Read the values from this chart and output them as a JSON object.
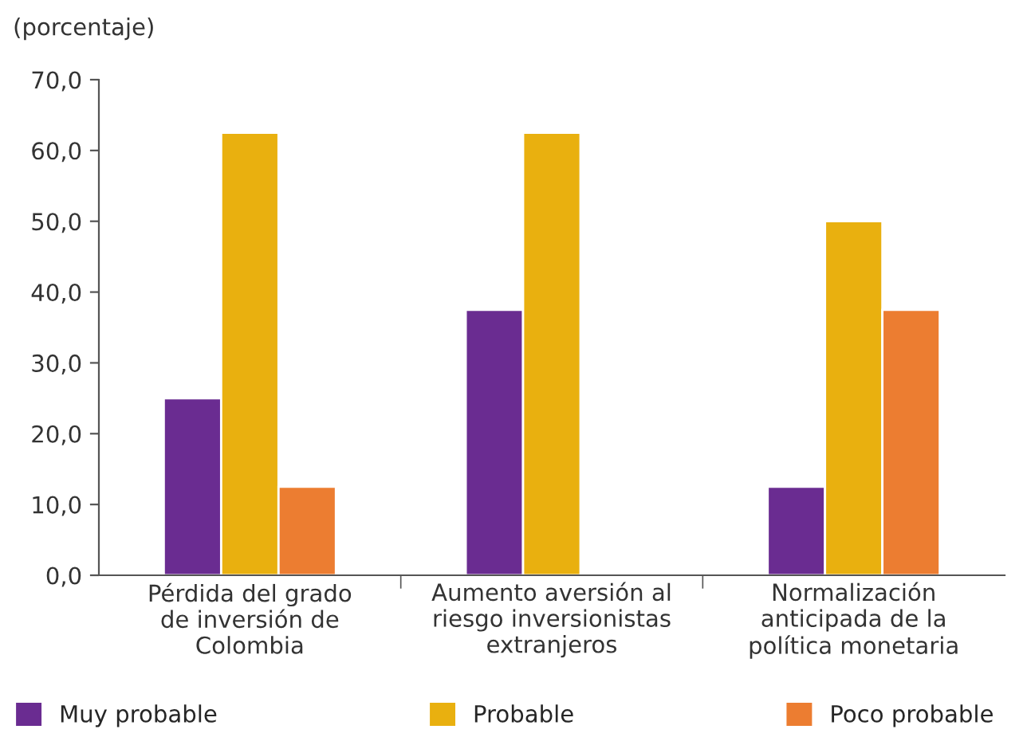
{
  "chart_data": {
    "type": "bar",
    "ylabel": "(porcentaje)",
    "categories": [
      "Pérdida del grado\nde inversión de\nColombia",
      "Aumento aversión al\nriesgo inversionistas\nextranjeros",
      "Normalización\nanticipada de la\npolítica monetaria"
    ],
    "series": [
      {
        "name": "Muy probable",
        "color": "#6a2c91",
        "values": [
          25.0,
          37.5,
          12.5
        ]
      },
      {
        "name": "Probable",
        "color": "#e9b00f",
        "values": [
          62.5,
          62.5,
          50.0
        ]
      },
      {
        "name": "Poco probable",
        "color": "#ec7d31",
        "values": [
          12.5,
          null,
          37.5
        ]
      }
    ],
    "ylim": [
      0,
      70
    ],
    "yticks": [
      {
        "value": 0,
        "label": "0,0"
      },
      {
        "value": 10,
        "label": "10,0"
      },
      {
        "value": 20,
        "label": "20,0"
      },
      {
        "value": 30,
        "label": "30,0"
      },
      {
        "value": 40,
        "label": "40,0"
      },
      {
        "value": 50,
        "label": "50,0"
      },
      {
        "value": 60,
        "label": "60,0"
      },
      {
        "value": 70,
        "label": "70,0"
      }
    ],
    "grid": false,
    "legend": "bottom"
  }
}
